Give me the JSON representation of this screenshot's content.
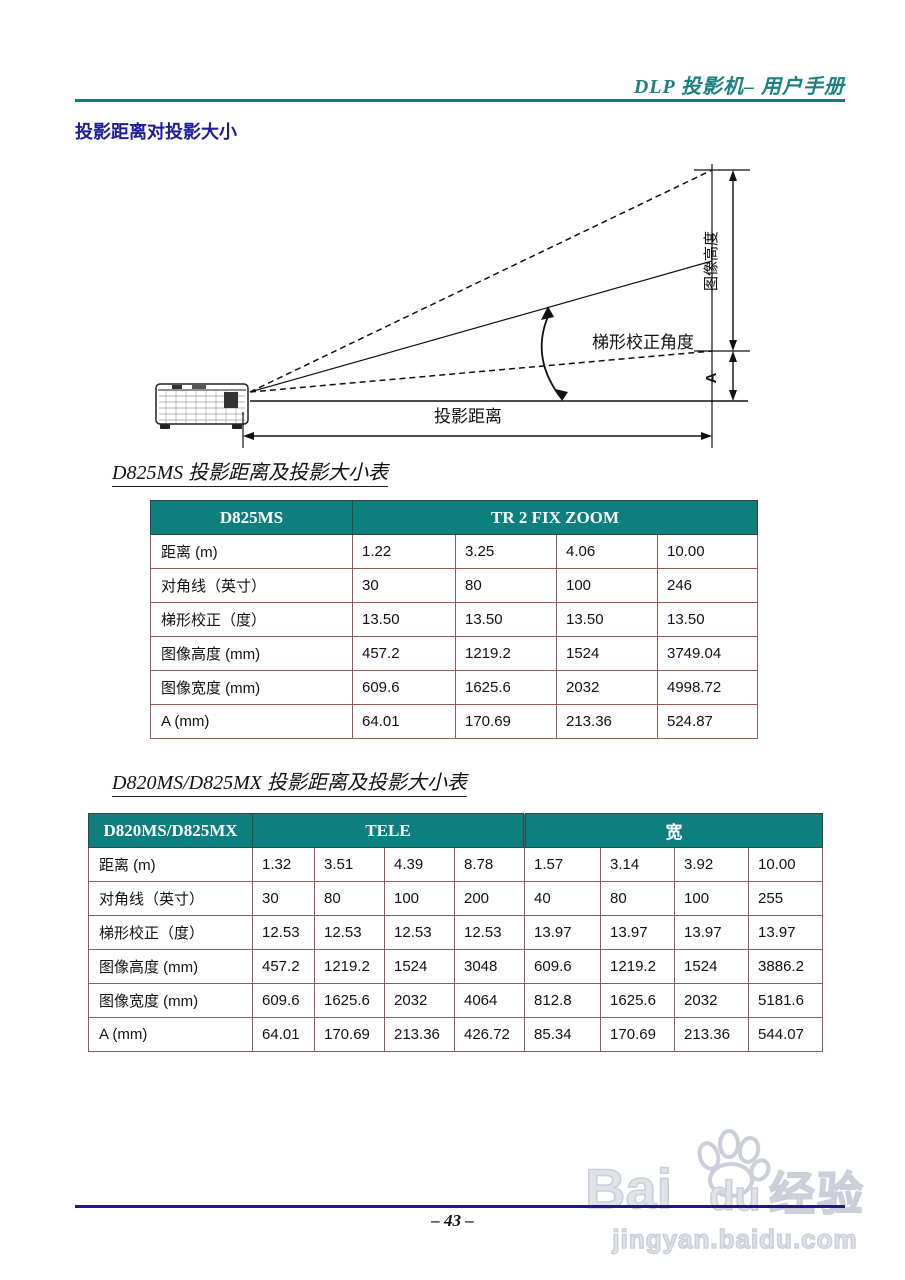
{
  "header": {
    "title": "DLP 投影机– 用户手册"
  },
  "section_title": "投影距离对投影大小",
  "diagram": {
    "labels": {
      "image_height": "图像高度",
      "keystone_angle": "梯形校正角度",
      "a_label": "A",
      "projection_distance": "投影距离"
    }
  },
  "table1": {
    "title": "D825MS 投影距离及投影大小表",
    "header": {
      "model": "D825MS",
      "group": "TR 2 FIX ZOOM"
    },
    "rows": [
      {
        "label": "距离 (m)",
        "values": [
          "1.22",
          "3.25",
          "4.06",
          "10.00"
        ]
      },
      {
        "label": "对角线（英寸）",
        "values": [
          "30",
          "80",
          "100",
          "246"
        ]
      },
      {
        "label": "梯形校正（度）",
        "values": [
          "13.50",
          "13.50",
          "13.50",
          "13.50"
        ]
      },
      {
        "label": "图像高度 (mm)",
        "values": [
          "457.2",
          "1219.2",
          "1524",
          "3749.04"
        ]
      },
      {
        "label": "图像宽度 (mm)",
        "values": [
          "609.6",
          "1625.6",
          "2032",
          "4998.72"
        ]
      },
      {
        "label": "A (mm)",
        "values": [
          "64.01",
          "170.69",
          "213.36",
          "524.87"
        ]
      }
    ]
  },
  "table2": {
    "title": "D820MS/D825MX 投影距离及投影大小表",
    "header": {
      "model": "D820MS/D825MX",
      "group1": "TELE",
      "group2": "宽"
    },
    "rows": [
      {
        "label": "距离 (m)",
        "values": [
          "1.32",
          "3.51",
          "4.39",
          "8.78",
          "1.57",
          "3.14",
          "3.92",
          "10.00"
        ]
      },
      {
        "label": "对角线（英寸）",
        "values": [
          "30",
          "80",
          "100",
          "200",
          "40",
          "80",
          "100",
          "255"
        ]
      },
      {
        "label": "梯形校正（度）",
        "values": [
          "12.53",
          "12.53",
          "12.53",
          "12.53",
          "13.97",
          "13.97",
          "13.97",
          "13.97"
        ]
      },
      {
        "label": "图像高度 (mm)",
        "values": [
          "457.2",
          "1219.2",
          "1524",
          "3048",
          "609.6",
          "1219.2",
          "1524",
          "3886.2"
        ]
      },
      {
        "label": "图像宽度 (mm)",
        "values": [
          "609.6",
          "1625.6",
          "2032",
          "4064",
          "812.8",
          "1625.6",
          "2032",
          "5181.6"
        ]
      },
      {
        "label": "A (mm)",
        "values": [
          "64.01",
          "170.69",
          "213.36",
          "426.72",
          "85.34",
          "170.69",
          "213.36",
          "544.07"
        ]
      }
    ]
  },
  "footer": {
    "page_number": "– 43 –"
  },
  "watermark": {
    "bai": "Bai",
    "du": "du",
    "suffix": "经验",
    "url": "jingyan.baidu.com"
  },
  "colors": {
    "accent_teal": "#0d7f7f",
    "header_text_teal": "#1a8181",
    "section_navy": "#1c1c9c",
    "footer_navy": "#1c1c78",
    "table_border_maroon": "#9a5a5a"
  }
}
